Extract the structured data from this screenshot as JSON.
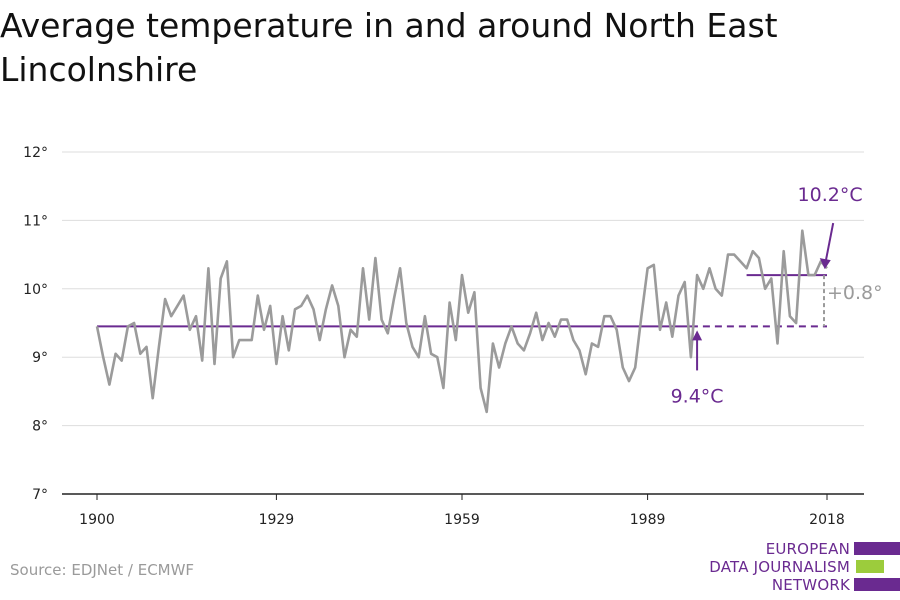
{
  "header": {
    "title": "Average temperature in and around North East Lincolnshire"
  },
  "footer": {
    "source": "Source: EDJNet / ECMWF"
  },
  "logo": {
    "lines": [
      "EUROPEAN",
      "DATA JOURNALISM",
      "NETWORK"
    ],
    "colors": {
      "purple": "#6a2a90",
      "green": "#9ccc3c"
    }
  },
  "colors": {
    "series": "#9b9b9b",
    "baseline": "#6a2a90",
    "grid": "#dddddd",
    "axis": "#222222",
    "delta": "#9b9b9b"
  },
  "chart_data": {
    "type": "line",
    "title": "Average temperature in and around North East Lincolnshire",
    "xlabel": "",
    "ylabel": "",
    "xlim": [
      1900,
      2018
    ],
    "ylim": [
      7,
      12
    ],
    "x_ticks": [
      1900,
      1929,
      1959,
      1989,
      2018
    ],
    "y_ticks": [
      7,
      8,
      9,
      10,
      11,
      12
    ],
    "y_tick_labels": [
      "7°",
      "8°",
      "9°",
      "10°",
      "11°",
      "12°"
    ],
    "grid": true,
    "series": [
      {
        "x": [
          1900,
          1901,
          1902,
          1903,
          1904,
          1905,
          1906,
          1907,
          1908,
          1909,
          1910,
          1911,
          1912,
          1913,
          1914,
          1915,
          1916,
          1917,
          1918,
          1919,
          1920,
          1921,
          1922,
          1923,
          1924,
          1925,
          1926,
          1927,
          1928,
          1929,
          1930,
          1931,
          1932,
          1933,
          1934,
          1935,
          1936,
          1937,
          1938,
          1939,
          1940,
          1941,
          1942,
          1943,
          1944,
          1945,
          1946,
          1947,
          1948,
          1949,
          1950,
          1951,
          1952,
          1953,
          1954,
          1955,
          1956,
          1957,
          1958,
          1959,
          1960,
          1961,
          1962,
          1963,
          1964,
          1965,
          1966,
          1967,
          1968,
          1969,
          1970,
          1971,
          1972,
          1973,
          1974,
          1975,
          1976,
          1977,
          1978,
          1979,
          1980,
          1981,
          1982,
          1983,
          1984,
          1985,
          1986,
          1987,
          1988,
          1989,
          1990,
          1991,
          1992,
          1993,
          1994,
          1995,
          1996,
          1997,
          1998,
          1999,
          2000,
          2001,
          2002,
          2003,
          2004,
          2005,
          2006,
          2007,
          2008,
          2009,
          2010,
          2011,
          2012,
          2013,
          2014,
          2015,
          2016,
          2017,
          2018
        ],
        "values": [
          9.45,
          9.0,
          8.6,
          9.05,
          8.95,
          9.45,
          9.5,
          9.05,
          9.15,
          8.4,
          9.15,
          9.85,
          9.6,
          9.75,
          9.9,
          9.4,
          9.6,
          8.95,
          10.3,
          8.9,
          10.15,
          10.4,
          9.0,
          9.25,
          9.25,
          9.25,
          9.9,
          9.4,
          9.75,
          8.9,
          9.6,
          9.1,
          9.7,
          9.75,
          9.9,
          9.7,
          9.25,
          9.7,
          10.05,
          9.75,
          9.0,
          9.4,
          9.3,
          10.3,
          9.55,
          10.45,
          9.55,
          9.35,
          9.85,
          10.3,
          9.5,
          9.15,
          9.0,
          9.6,
          9.05,
          9.0,
          8.55,
          9.8,
          9.25,
          10.2,
          9.65,
          9.95,
          8.55,
          8.2,
          9.2,
          8.85,
          9.2,
          9.45,
          9.2,
          9.1,
          9.35,
          9.65,
          9.25,
          9.5,
          9.3,
          9.55,
          9.55,
          9.25,
          9.1,
          8.75,
          9.2,
          9.15,
          9.6,
          9.6,
          9.4,
          8.85,
          8.65,
          8.85,
          9.6,
          10.3,
          10.35,
          9.4,
          9.8,
          9.3,
          9.9,
          10.1,
          9.0,
          10.2,
          10.0,
          10.3,
          10.0,
          9.9,
          10.5,
          10.5,
          10.4,
          10.3,
          10.55,
          10.45,
          10.0,
          10.15,
          9.2,
          10.55,
          9.6,
          9.5,
          10.85,
          10.2,
          10.2,
          10.4,
          10.3
        ]
      }
    ],
    "baseline": {
      "label": "9.4°C",
      "value": 9.45
    },
    "recent": {
      "label": "10.2°C",
      "value": 10.2,
      "x_start": 2005
    },
    "delta_label": "+0.8°"
  }
}
